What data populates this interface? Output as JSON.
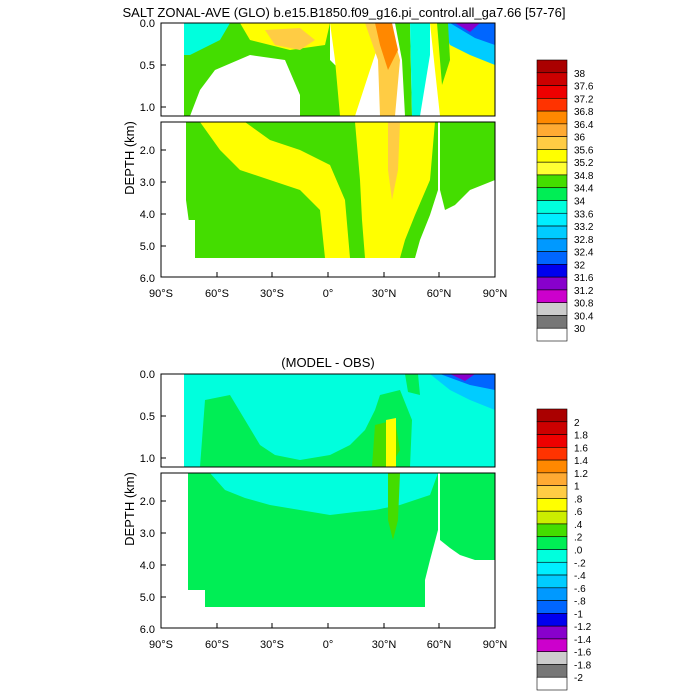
{
  "page": {
    "title": "SALT ZONAL-AVE (GLO) b.e15.B1850.f09_g16.pi_control.all_ga7.66 [57-76]"
  },
  "chart_data": [
    {
      "type": "heatmap",
      "subtitle": "",
      "ylabel": "DEPTH (km)",
      "xlim": [
        -90,
        90
      ],
      "ylim": [
        0,
        6
      ],
      "x_ticks": [
        "90°S",
        "60°S",
        "30°S",
        "0°",
        "30°N",
        "60°N",
        "90°N"
      ],
      "y_ticks_upper": [
        "0.0",
        "0.5",
        "1.0"
      ],
      "y_ticks_lower": [
        "2.0",
        "3.0",
        "4.0",
        "5.0",
        "6.0"
      ],
      "colorbar_labels": [
        "38",
        "37.6",
        "37.2",
        "36.8",
        "36.4",
        "36",
        "35.6",
        "35.2",
        "34.8",
        "34.4",
        "34",
        "33.6",
        "33.2",
        "32.8",
        "32.4",
        "32",
        "31.6",
        "31.2",
        "30.8",
        "30.4",
        "30"
      ],
      "colorbar_colors": [
        "#aa0000",
        "#cc0000",
        "#ee0000",
        "#ff3300",
        "#ff8800",
        "#ffaa33",
        "#ffcc44",
        "#ffff00",
        "#ffff33",
        "#44dd00",
        "#00ee55",
        "#00ffdd",
        "#00eeff",
        "#00ccff",
        "#0099ff",
        "#0066ff",
        "#0000ee",
        "#8800cc",
        "#cc00cc",
        "#cccccc",
        "#777777",
        "#ffffff"
      ],
      "regions": [
        {
          "lat": [
            -75,
            -65
          ],
          "depth": [
            0,
            0.3
          ],
          "value": "33.8"
        },
        {
          "lat": [
            -75,
            -45
          ],
          "depth": [
            0.3,
            5.0
          ],
          "value": "34.6"
        },
        {
          "lat": [
            -45,
            -20
          ],
          "depth": [
            0.2,
            0.8
          ],
          "value": "34.4"
        },
        {
          "lat": [
            -40,
            -5
          ],
          "depth": [
            0.0,
            0.4
          ],
          "value": "35.4"
        },
        {
          "lat": [
            -60,
            -10
          ],
          "depth": [
            1.2,
            5.3
          ],
          "value": "34.9"
        },
        {
          "lat": [
            -5,
            15
          ],
          "depth": [
            0.1,
            5.3
          ],
          "value": "34.7"
        },
        {
          "lat": [
            25,
            45
          ],
          "depth": [
            0.0,
            1.0
          ],
          "value": "35.8"
        },
        {
          "lat": [
            15,
            55
          ],
          "depth": [
            1.2,
            5.3
          ],
          "value": "34.9"
        },
        {
          "lat": [
            45,
            90
          ],
          "depth": [
            0.0,
            0.3
          ],
          "value": "33.0"
        },
        {
          "lat": [
            60,
            90
          ],
          "depth": [
            0.3,
            4.0
          ],
          "value": "34.9"
        }
      ]
    },
    {
      "type": "heatmap",
      "subtitle": "(MODEL - OBS)",
      "ylabel": "DEPTH (km)",
      "xlim": [
        -90,
        90
      ],
      "ylim": [
        0,
        6
      ],
      "x_ticks": [
        "90°S",
        "60°S",
        "30°S",
        "0°",
        "30°N",
        "60°N",
        "90°N"
      ],
      "y_ticks_upper": [
        "0.0",
        "0.5",
        "1.0"
      ],
      "y_ticks_lower": [
        "2.0",
        "3.0",
        "4.0",
        "5.0",
        "6.0"
      ],
      "colorbar_labels": [
        "2",
        "1.8",
        "1.6",
        "1.4",
        "1.2",
        "1",
        ".8",
        ".6",
        ".4",
        ".2",
        ".0",
        "-.2",
        "-.4",
        "-.6",
        "-.8",
        "-1",
        "-1.2",
        "-1.4",
        "-1.6",
        "-1.8",
        "-2"
      ],
      "colorbar_colors": [
        "#aa0000",
        "#cc0000",
        "#ee0000",
        "#ff3300",
        "#ff8800",
        "#ffaa33",
        "#ffcc44",
        "#ffff00",
        "#ccee00",
        "#44dd00",
        "#00ee55",
        "#00ffdd",
        "#00eeff",
        "#00ccff",
        "#0099ff",
        "#0066ff",
        "#0000ee",
        "#8800cc",
        "#cc00cc",
        "#cccccc",
        "#777777",
        "#ffffff"
      ],
      "regions": [
        {
          "lat": [
            -75,
            90
          ],
          "depth": [
            0.0,
            1.1
          ],
          "value": "-.1"
        },
        {
          "lat": [
            -75,
            90
          ],
          "depth": [
            1.1,
            5.3
          ],
          "value": ".1"
        },
        {
          "lat": [
            25,
            45
          ],
          "depth": [
            0.5,
            2.2
          ],
          "value": ".4"
        }
      ]
    }
  ]
}
